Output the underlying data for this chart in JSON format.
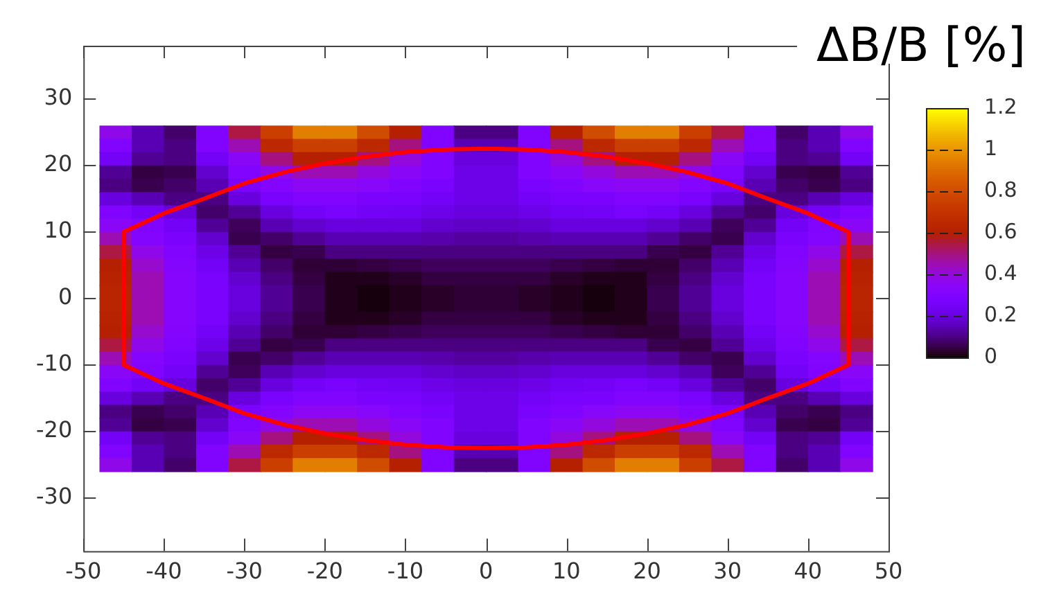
{
  "chart_data": {
    "type": "heatmap",
    "clabel": "ΔB/B [%]",
    "x": [
      -46,
      -42,
      -38,
      -34,
      -30,
      -26,
      -22,
      -18,
      -14,
      -10,
      -6,
      -2,
      2,
      6,
      10,
      14,
      18,
      22,
      26,
      30,
      34,
      38,
      42,
      46
    ],
    "y": [
      25,
      23,
      21,
      19,
      17,
      15,
      13,
      11,
      9,
      7,
      5,
      3,
      1,
      -1,
      -3,
      -5,
      -7,
      -9,
      -11,
      -13,
      -15,
      -17,
      -19,
      -21,
      -23,
      -25
    ],
    "cells": [
      [
        0.38,
        0.15,
        0.08,
        0.3,
        0.55,
        0.75,
        0.95,
        0.95,
        0.8,
        0.6,
        0.3,
        0.1,
        0.1,
        0.3,
        0.6,
        0.8,
        0.95,
        0.95,
        0.75,
        0.55,
        0.3,
        0.08,
        0.15,
        0.38
      ],
      [
        0.3,
        0.15,
        0.1,
        0.3,
        0.45,
        0.65,
        0.75,
        0.75,
        0.65,
        0.5,
        0.3,
        0.15,
        0.15,
        0.3,
        0.5,
        0.65,
        0.75,
        0.75,
        0.65,
        0.45,
        0.3,
        0.1,
        0.15,
        0.3
      ],
      [
        0.25,
        0.12,
        0.1,
        0.25,
        0.35,
        0.5,
        0.6,
        0.6,
        0.5,
        0.4,
        0.3,
        0.2,
        0.2,
        0.3,
        0.4,
        0.5,
        0.6,
        0.6,
        0.5,
        0.35,
        0.25,
        0.1,
        0.12,
        0.25
      ],
      [
        0.12,
        0.05,
        0.06,
        0.18,
        0.3,
        0.38,
        0.45,
        0.45,
        0.4,
        0.35,
        0.3,
        0.22,
        0.22,
        0.3,
        0.35,
        0.4,
        0.45,
        0.45,
        0.38,
        0.3,
        0.18,
        0.06,
        0.05,
        0.12
      ],
      [
        0.1,
        0.06,
        0.08,
        0.15,
        0.28,
        0.32,
        0.36,
        0.36,
        0.34,
        0.3,
        0.27,
        0.22,
        0.22,
        0.27,
        0.3,
        0.34,
        0.36,
        0.36,
        0.32,
        0.28,
        0.15,
        0.08,
        0.06,
        0.1
      ],
      [
        0.2,
        0.15,
        0.1,
        0.1,
        0.2,
        0.27,
        0.3,
        0.3,
        0.28,
        0.27,
        0.25,
        0.22,
        0.22,
        0.25,
        0.27,
        0.28,
        0.3,
        0.3,
        0.27,
        0.2,
        0.1,
        0.1,
        0.15,
        0.2
      ],
      [
        0.3,
        0.25,
        0.2,
        0.08,
        0.12,
        0.2,
        0.25,
        0.27,
        0.25,
        0.24,
        0.22,
        0.2,
        0.2,
        0.22,
        0.24,
        0.25,
        0.27,
        0.25,
        0.2,
        0.12,
        0.08,
        0.2,
        0.25,
        0.3
      ],
      [
        0.35,
        0.3,
        0.25,
        0.12,
        0.07,
        0.15,
        0.18,
        0.2,
        0.2,
        0.2,
        0.18,
        0.17,
        0.17,
        0.18,
        0.2,
        0.2,
        0.2,
        0.18,
        0.15,
        0.07,
        0.12,
        0.25,
        0.3,
        0.35
      ],
      [
        0.45,
        0.32,
        0.28,
        0.18,
        0.06,
        0.08,
        0.12,
        0.15,
        0.15,
        0.15,
        0.14,
        0.13,
        0.13,
        0.14,
        0.15,
        0.15,
        0.15,
        0.12,
        0.08,
        0.06,
        0.18,
        0.28,
        0.32,
        0.45
      ],
      [
        0.55,
        0.38,
        0.3,
        0.22,
        0.12,
        0.05,
        0.06,
        0.1,
        0.1,
        0.1,
        0.1,
        0.1,
        0.1,
        0.1,
        0.1,
        0.1,
        0.1,
        0.06,
        0.05,
        0.12,
        0.22,
        0.3,
        0.38,
        0.55
      ],
      [
        0.6,
        0.42,
        0.32,
        0.25,
        0.15,
        0.08,
        0.04,
        0.04,
        0.05,
        0.06,
        0.07,
        0.07,
        0.07,
        0.07,
        0.06,
        0.05,
        0.04,
        0.04,
        0.08,
        0.15,
        0.25,
        0.32,
        0.42,
        0.6
      ],
      [
        0.62,
        0.45,
        0.33,
        0.27,
        0.18,
        0.1,
        0.05,
        0.02,
        0.02,
        0.03,
        0.05,
        0.05,
        0.05,
        0.05,
        0.03,
        0.02,
        0.02,
        0.05,
        0.1,
        0.18,
        0.27,
        0.33,
        0.45,
        0.62
      ],
      [
        0.63,
        0.45,
        0.33,
        0.28,
        0.2,
        0.12,
        0.06,
        0.02,
        0.01,
        0.02,
        0.03,
        0.04,
        0.04,
        0.03,
        0.02,
        0.01,
        0.02,
        0.06,
        0.12,
        0.2,
        0.28,
        0.33,
        0.45,
        0.63
      ],
      [
        0.63,
        0.45,
        0.33,
        0.28,
        0.2,
        0.12,
        0.06,
        0.02,
        0.01,
        0.02,
        0.03,
        0.04,
        0.04,
        0.03,
        0.02,
        0.01,
        0.02,
        0.06,
        0.12,
        0.2,
        0.28,
        0.33,
        0.45,
        0.63
      ],
      [
        0.62,
        0.45,
        0.33,
        0.27,
        0.18,
        0.1,
        0.05,
        0.02,
        0.02,
        0.03,
        0.05,
        0.05,
        0.05,
        0.05,
        0.03,
        0.02,
        0.02,
        0.05,
        0.1,
        0.18,
        0.27,
        0.33,
        0.45,
        0.62
      ],
      [
        0.6,
        0.42,
        0.32,
        0.25,
        0.15,
        0.08,
        0.04,
        0.04,
        0.05,
        0.06,
        0.07,
        0.07,
        0.07,
        0.07,
        0.06,
        0.05,
        0.04,
        0.04,
        0.08,
        0.15,
        0.25,
        0.32,
        0.42,
        0.6
      ],
      [
        0.55,
        0.38,
        0.3,
        0.22,
        0.12,
        0.05,
        0.06,
        0.1,
        0.1,
        0.1,
        0.1,
        0.1,
        0.1,
        0.1,
        0.1,
        0.1,
        0.1,
        0.06,
        0.05,
        0.12,
        0.22,
        0.3,
        0.38,
        0.55
      ],
      [
        0.45,
        0.32,
        0.28,
        0.18,
        0.06,
        0.08,
        0.12,
        0.15,
        0.15,
        0.15,
        0.14,
        0.13,
        0.13,
        0.14,
        0.15,
        0.15,
        0.15,
        0.12,
        0.08,
        0.06,
        0.18,
        0.28,
        0.32,
        0.45
      ],
      [
        0.35,
        0.3,
        0.25,
        0.12,
        0.07,
        0.15,
        0.18,
        0.2,
        0.2,
        0.2,
        0.18,
        0.17,
        0.17,
        0.18,
        0.2,
        0.2,
        0.2,
        0.18,
        0.15,
        0.07,
        0.12,
        0.25,
        0.3,
        0.35
      ],
      [
        0.3,
        0.25,
        0.2,
        0.08,
        0.12,
        0.2,
        0.25,
        0.27,
        0.25,
        0.24,
        0.22,
        0.2,
        0.2,
        0.22,
        0.24,
        0.25,
        0.27,
        0.25,
        0.2,
        0.12,
        0.08,
        0.2,
        0.25,
        0.3
      ],
      [
        0.2,
        0.15,
        0.1,
        0.1,
        0.2,
        0.27,
        0.3,
        0.3,
        0.28,
        0.27,
        0.25,
        0.22,
        0.22,
        0.25,
        0.27,
        0.28,
        0.3,
        0.3,
        0.27,
        0.2,
        0.1,
        0.1,
        0.15,
        0.2
      ],
      [
        0.1,
        0.06,
        0.08,
        0.15,
        0.28,
        0.32,
        0.36,
        0.36,
        0.34,
        0.3,
        0.27,
        0.22,
        0.22,
        0.27,
        0.3,
        0.34,
        0.36,
        0.36,
        0.32,
        0.28,
        0.15,
        0.08,
        0.06,
        0.1
      ],
      [
        0.12,
        0.05,
        0.06,
        0.18,
        0.3,
        0.38,
        0.45,
        0.45,
        0.4,
        0.35,
        0.3,
        0.22,
        0.22,
        0.3,
        0.35,
        0.4,
        0.45,
        0.45,
        0.38,
        0.3,
        0.18,
        0.06,
        0.05,
        0.12
      ],
      [
        0.25,
        0.12,
        0.1,
        0.25,
        0.35,
        0.5,
        0.6,
        0.6,
        0.5,
        0.4,
        0.3,
        0.2,
        0.2,
        0.3,
        0.4,
        0.5,
        0.6,
        0.6,
        0.5,
        0.35,
        0.25,
        0.1,
        0.12,
        0.25
      ],
      [
        0.3,
        0.15,
        0.1,
        0.3,
        0.45,
        0.65,
        0.75,
        0.75,
        0.65,
        0.5,
        0.3,
        0.15,
        0.15,
        0.3,
        0.5,
        0.65,
        0.75,
        0.75,
        0.65,
        0.45,
        0.3,
        0.1,
        0.15,
        0.3
      ],
      [
        0.38,
        0.15,
        0.08,
        0.3,
        0.55,
        0.75,
        0.95,
        0.95,
        0.8,
        0.6,
        0.3,
        0.1,
        0.1,
        0.3,
        0.6,
        0.8,
        0.95,
        0.95,
        0.75,
        0.55,
        0.3,
        0.08,
        0.15,
        0.38
      ]
    ],
    "clim": [
      0,
      1.2
    ],
    "cticks": [
      0,
      0.2,
      0.4,
      0.6,
      0.8,
      1,
      1.2
    ],
    "series": [
      {
        "type": "line",
        "color": "#ff0000",
        "x": [
          -45,
          -40,
          -35,
          -30,
          -25,
          -20,
          -15,
          -10,
          -5,
          0,
          5,
          10,
          15,
          20,
          25,
          30,
          35,
          40,
          45
        ],
        "values": [
          10,
          12.8,
          15,
          17.3,
          19,
          20.3,
          21.3,
          22,
          22.4,
          22.5,
          22.4,
          22,
          21.3,
          20.3,
          19,
          17.3,
          15,
          12.8,
          10
        ]
      },
      {
        "type": "line",
        "color": "#ff0000",
        "x": [
          -45,
          -40,
          -35,
          -30,
          -25,
          -20,
          -15,
          -10,
          -5,
          0,
          5,
          10,
          15,
          20,
          25,
          30,
          35,
          40,
          45
        ],
        "values": [
          -10,
          -12.8,
          -15,
          -17.3,
          -19,
          -20.3,
          -21.3,
          -22,
          -22.4,
          -22.5,
          -22.4,
          -22,
          -21.3,
          -20.3,
          -19,
          -17.3,
          -15,
          -12.8,
          -10
        ]
      },
      {
        "type": "line",
        "color": "#ff0000",
        "x": [
          -45,
          -45
        ],
        "values": [
          10,
          -10
        ]
      },
      {
        "type": "line",
        "color": "#ff0000",
        "x": [
          45,
          45
        ],
        "values": [
          10,
          -10
        ]
      }
    ],
    "xlim": [
      -50,
      50
    ],
    "xticks": [
      -50,
      -40,
      -30,
      -20,
      -10,
      0,
      10,
      20,
      30,
      40,
      50
    ],
    "ylim": [
      -38,
      38
    ],
    "yticks": [
      -30,
      -20,
      -10,
      0,
      10,
      20,
      30
    ],
    "grid": false,
    "legend": false
  }
}
